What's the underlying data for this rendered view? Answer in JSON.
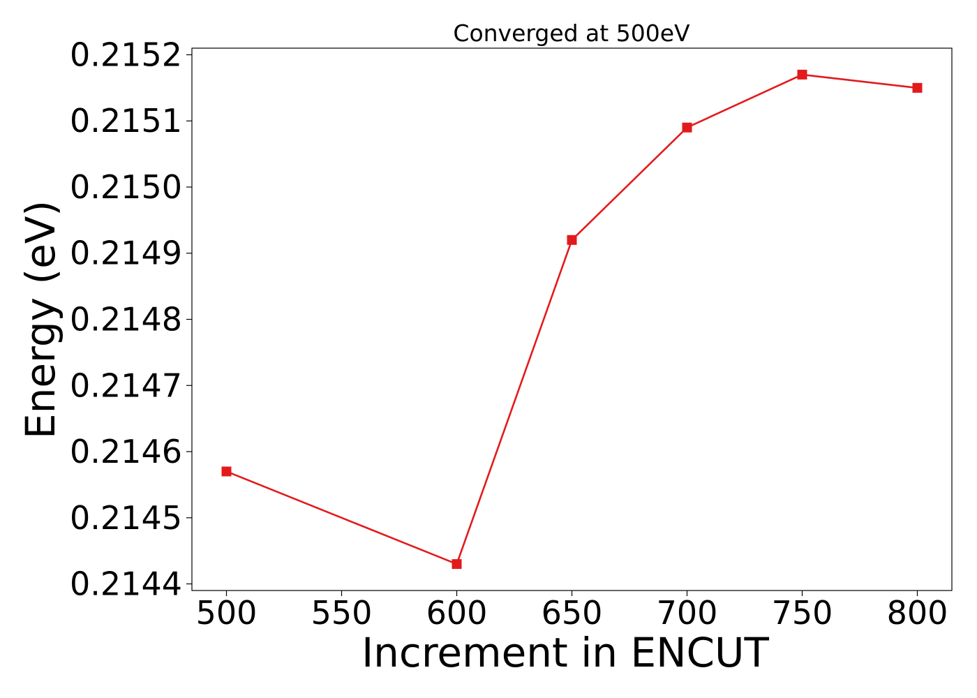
{
  "chart_data": {
    "type": "line",
    "title": "Converged at 500eV",
    "xlabel": "Increment in ENCUT",
    "ylabel": "Energy (eV)",
    "x": [
      500,
      600,
      650,
      700,
      750,
      800
    ],
    "series": [
      {
        "values": [
          0.21457,
          0.21443,
          0.21492,
          0.21509,
          0.21517,
          0.21515
        ],
        "color": "#e31a1c",
        "marker": "square"
      }
    ],
    "xlim": [
      485,
      815
    ],
    "ylim": [
      0.21439,
      0.21521
    ],
    "xticks": [
      500,
      550,
      600,
      650,
      700,
      750,
      800
    ],
    "xtick_labels": [
      "500",
      "550",
      "600",
      "650",
      "700",
      "750",
      "800"
    ],
    "yticks": [
      0.2144,
      0.2145,
      0.2146,
      0.2147,
      0.2148,
      0.2149,
      0.215,
      0.2151,
      0.2152
    ],
    "ytick_labels": [
      "0.2144",
      "0.2145",
      "0.2146",
      "0.2147",
      "0.2148",
      "0.2149",
      "0.2150",
      "0.2151",
      "0.2152"
    ],
    "grid": false,
    "legend": false
  }
}
